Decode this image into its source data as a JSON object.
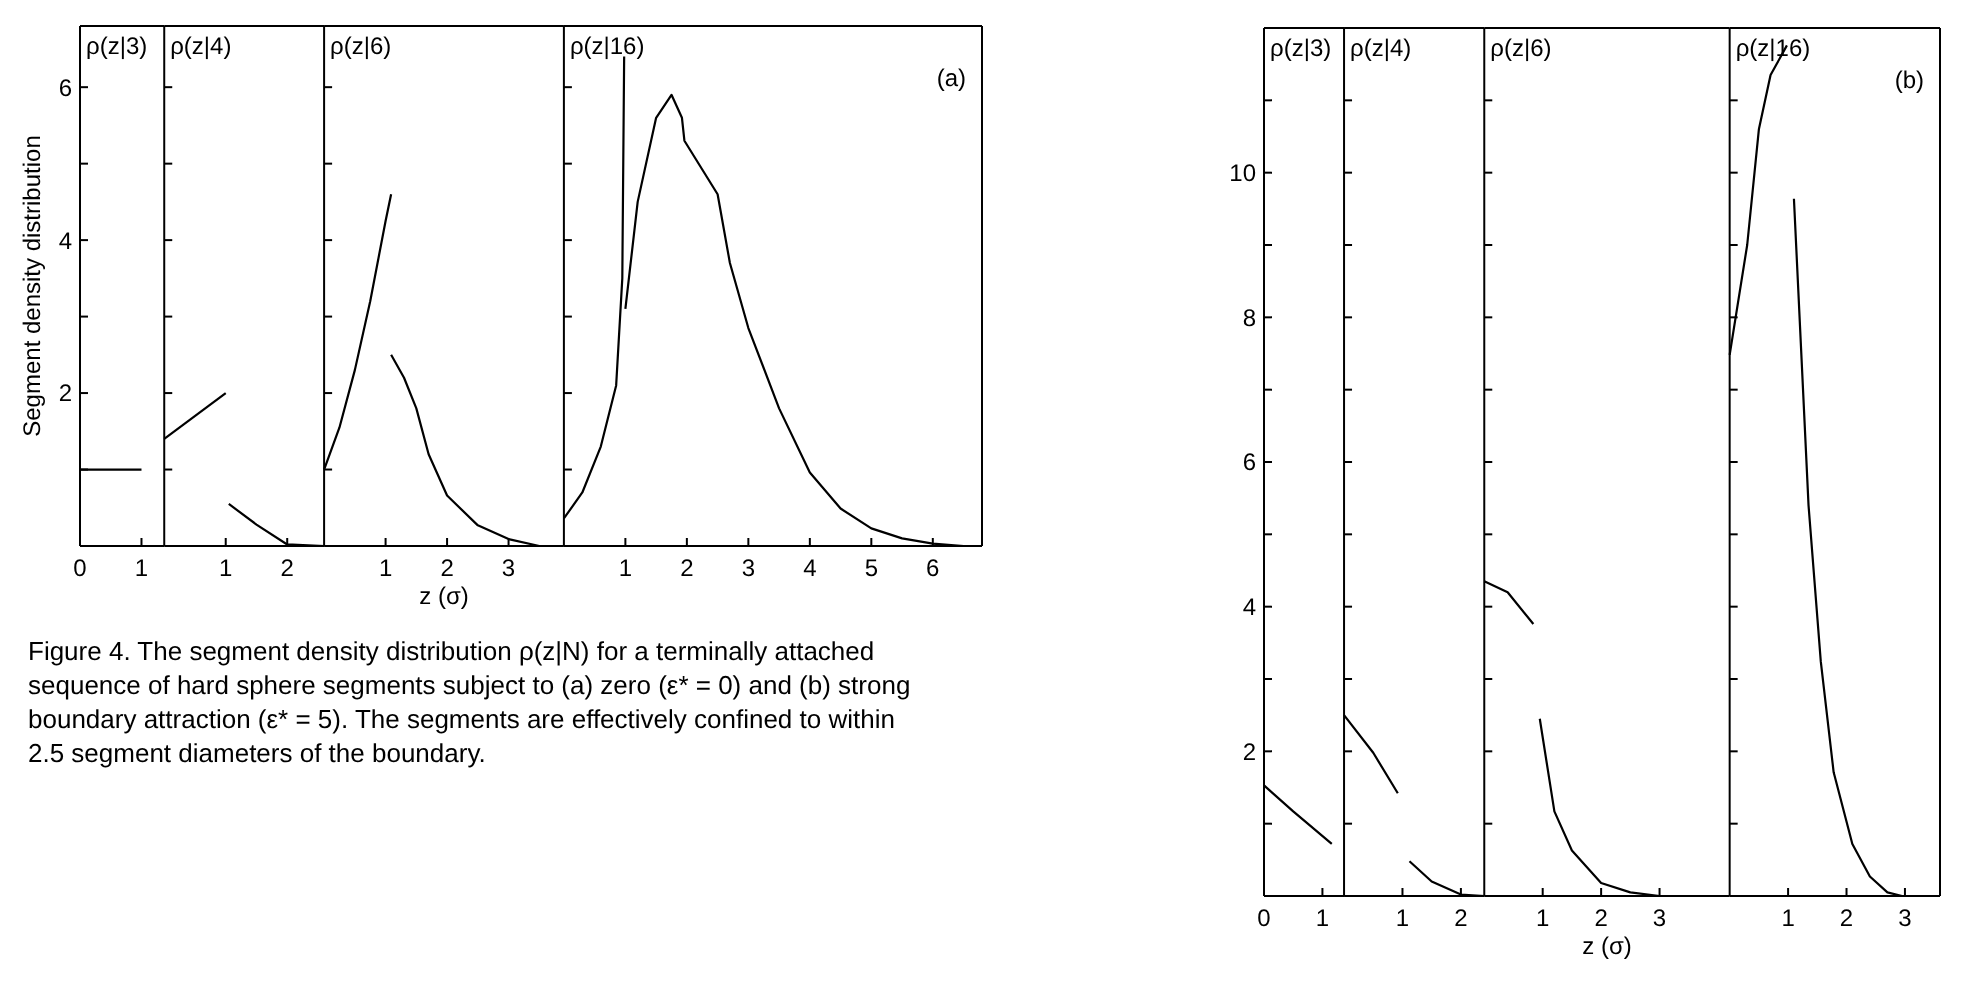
{
  "chart_data": [
    {
      "type": "line",
      "title": "ρ(z|3)",
      "ylabel": "Segment density distribution",
      "xlim": [
        0,
        1.37
      ],
      "xticks": [
        0,
        1
      ],
      "ylim": [
        0,
        6.8
      ],
      "yticks": [
        {
          "value": 1,
          "label": null
        },
        2,
        {
          "value": 3,
          "label": null
        },
        4,
        {
          "value": 5,
          "label": null
        },
        6
      ],
      "series": [
        {
          "color": "#000000",
          "x": [
            0,
            1
          ],
          "values": [
            1,
            1
          ]
        }
      ]
    },
    {
      "type": "line",
      "title": "ρ(z|4)",
      "tick_labels": "x",
      "xlim": [
        0,
        2.6
      ],
      "xticks": [
        1,
        2
      ],
      "ylim": [
        0,
        6.8
      ],
      "yticks": [
        {
          "value": 1,
          "label": null
        },
        {
          "value": 2,
          "label": null
        },
        {
          "value": 3,
          "label": null
        },
        {
          "value": 4,
          "label": null
        },
        {
          "value": 5,
          "label": null
        },
        {
          "value": 6,
          "label": null
        }
      ],
      "series": [
        {
          "color": "#000000",
          "x": [
            0,
            1
          ],
          "values": [
            1.4,
            2
          ]
        },
        {
          "color": "#000000",
          "x": [
            1.05,
            1.5,
            2,
            2.6
          ],
          "values": [
            0.55,
            0.28,
            0.02,
            0
          ]
        }
      ]
    },
    {
      "type": "line",
      "title": "ρ(z|6)",
      "xlabel": "z (σ)",
      "tick_labels": "x",
      "xlim": [
        0,
        3.9
      ],
      "xticks": [
        1,
        2,
        3
      ],
      "ylim": [
        0,
        6.8
      ],
      "yticks": [
        {
          "value": 1,
          "label": null
        },
        {
          "value": 2,
          "label": null
        },
        {
          "value": 3,
          "label": null
        },
        {
          "value": 4,
          "label": null
        },
        {
          "value": 5,
          "label": null
        },
        {
          "value": 6,
          "label": null
        }
      ],
      "series": [
        {
          "color": "#000000",
          "x": [
            0,
            0.25,
            0.5,
            0.75,
            1,
            1.09
          ],
          "values": [
            1,
            1.55,
            2.3,
            3.2,
            4.25,
            4.6
          ]
        },
        {
          "color": "#000000",
          "x": [
            1.09,
            1.3,
            1.5,
            1.7,
            2,
            2.5,
            3,
            3.5
          ],
          "values": [
            2.5,
            2.2,
            1.8,
            1.2,
            0.66,
            0.27,
            0.09,
            0
          ]
        }
      ]
    },
    {
      "type": "line",
      "title": "ρ(z|16)",
      "annotations": [
        "(a)"
      ],
      "tick_labels": "x",
      "xlim": [
        0,
        6.8
      ],
      "xticks": [
        1,
        2,
        3,
        4,
        5,
        6
      ],
      "ylim": [
        0,
        6.8
      ],
      "yticks": [
        {
          "value": 1,
          "label": null
        },
        {
          "value": 2,
          "label": null
        },
        {
          "value": 3,
          "label": null
        },
        {
          "value": 4,
          "label": null
        },
        {
          "value": 5,
          "label": null
        },
        {
          "value": 6,
          "label": null
        }
      ],
      "series": [
        {
          "color": "#000000",
          "x": [
            0,
            0.3,
            0.6,
            0.85,
            0.95,
            0.98
          ],
          "values": [
            0.36,
            0.7,
            1.3,
            2.1,
            3.5,
            6.4
          ]
        },
        {
          "color": "#000000",
          "x": [
            1,
            1.2,
            1.5,
            1.75,
            1.92,
            1.96,
            2.5,
            2.7,
            3,
            3.5,
            4,
            4.5,
            5,
            5.5,
            6,
            6.5
          ],
          "values": [
            3.1,
            4.5,
            5.6,
            5.9,
            5.6,
            5.3,
            4.6,
            3.7,
            2.85,
            1.8,
            0.96,
            0.49,
            0.23,
            0.1,
            0.03,
            0
          ]
        }
      ]
    },
    {
      "type": "line",
      "title": "ρ(z|3)",
      "xlim": [
        0,
        1.37
      ],
      "xticks": [
        0,
        1
      ],
      "ylim": [
        0,
        12
      ],
      "yticks": [
        {
          "value": 1,
          "label": null
        },
        2,
        {
          "value": 3,
          "label": null
        },
        4,
        {
          "value": 5,
          "label": null
        },
        6,
        {
          "value": 7,
          "label": null
        },
        8,
        {
          "value": 9,
          "label": null
        },
        10,
        {
          "value": 11,
          "label": null
        }
      ],
      "series": [
        {
          "color": "#000000",
          "x": [
            0,
            0.5,
            1.16
          ],
          "values": [
            1.53,
            1.17,
            0.72
          ]
        }
      ]
    },
    {
      "type": "line",
      "title": "ρ(z|4)",
      "tick_labels": "x",
      "xlim": [
        0,
        2.4
      ],
      "xticks": [
        1,
        2
      ],
      "ylim": [
        0,
        12
      ],
      "yticks": [
        {
          "value": 1,
          "label": null
        },
        {
          "value": 2,
          "label": null
        },
        {
          "value": 3,
          "label": null
        },
        {
          "value": 4,
          "label": null
        },
        {
          "value": 5,
          "label": null
        },
        {
          "value": 6,
          "label": null
        },
        {
          "value": 7,
          "label": null
        },
        {
          "value": 8,
          "label": null
        },
        {
          "value": 9,
          "label": null
        },
        {
          "value": 10,
          "label": null
        },
        {
          "value": 11,
          "label": null
        }
      ],
      "series": [
        {
          "color": "#000000",
          "x": [
            0,
            0.5,
            0.92
          ],
          "values": [
            2.5,
            1.98,
            1.42
          ]
        },
        {
          "color": "#000000",
          "x": [
            1.12,
            1.5,
            2,
            2.4
          ],
          "values": [
            0.48,
            0.2,
            0.02,
            0
          ]
        }
      ]
    },
    {
      "type": "line",
      "title": "ρ(z|6)",
      "xlabel": "z (σ)",
      "tick_labels": "x",
      "xlim": [
        0,
        4.2
      ],
      "xticks": [
        1,
        2,
        3
      ],
      "ylim": [
        0,
        12
      ],
      "yticks": [
        {
          "value": 1,
          "label": null
        },
        {
          "value": 2,
          "label": null
        },
        {
          "value": 3,
          "label": null
        },
        {
          "value": 4,
          "label": null
        },
        {
          "value": 5,
          "label": null
        },
        {
          "value": 6,
          "label": null
        },
        {
          "value": 7,
          "label": null
        },
        {
          "value": 8,
          "label": null
        },
        {
          "value": 9,
          "label": null
        },
        {
          "value": 10,
          "label": null
        },
        {
          "value": 11,
          "label": null
        }
      ],
      "series": [
        {
          "color": "#000000",
          "x": [
            0,
            0.4,
            0.84
          ],
          "values": [
            4.35,
            4.2,
            3.76
          ]
        },
        {
          "color": "#000000",
          "x": [
            0.95,
            1.2,
            1.5,
            2,
            2.5,
            3,
            3.5
          ],
          "values": [
            2.45,
            1.17,
            0.63,
            0.18,
            0.05,
            0,
            0
          ]
        }
      ]
    },
    {
      "type": "line",
      "title": "ρ(z|16)",
      "annotations": [
        "(b)"
      ],
      "tick_labels": "x",
      "xlim": [
        0,
        3.6
      ],
      "xticks": [
        1,
        2,
        3
      ],
      "ylim": [
        0,
        12
      ],
      "yticks": [
        {
          "value": 1,
          "label": null
        },
        {
          "value": 2,
          "label": null
        },
        {
          "value": 3,
          "label": null
        },
        {
          "value": 4,
          "label": null
        },
        {
          "value": 5,
          "label": null
        },
        {
          "value": 6,
          "label": null
        },
        {
          "value": 7,
          "label": null
        },
        {
          "value": 8,
          "label": null
        },
        {
          "value": 9,
          "label": null
        },
        {
          "value": 10,
          "label": null
        },
        {
          "value": 11,
          "label": null
        }
      ],
      "series": [
        {
          "color": "#000000",
          "x": [
            0,
            0.3,
            0.5,
            0.7,
            0.98
          ],
          "values": [
            7.48,
            9,
            10.6,
            11.35,
            11.76
          ]
        },
        {
          "color": "#000000",
          "x": [
            1.1,
            1.35,
            1.56,
            1.78,
            2.1,
            2.4,
            2.7,
            2.95
          ],
          "values": [
            9.64,
            5.4,
            3.24,
            1.71,
            0.72,
            0.27,
            0.05,
            0
          ]
        }
      ]
    },
    {
      "type": "other",
      "annotations": [
        "Figure 4. The segment density distribution ρ(z|N) for a terminally attached sequence of hard sphere segments subject to (a) zero (ε* = 0) and (b) strong boundary attraction (ε* = 5). The segments are effectively confined to within 2.5 segment diameters of the boundary."
      ]
    }
  ]
}
